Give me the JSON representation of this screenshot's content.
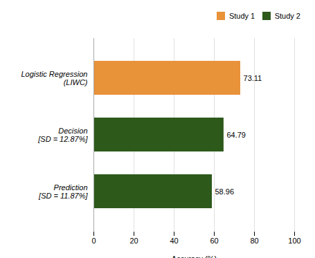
{
  "chart_data": {
    "type": "bar",
    "orientation": "horizontal",
    "categories": [
      "Logistic Regression\n(LIWC)",
      "Decision\n[SD = 12.87%]",
      "Prediction\n[SD = 11.87%]"
    ],
    "series": [
      {
        "name": "Study 1",
        "color": "#E8923A",
        "values": [
          73.11,
          null,
          null
        ]
      },
      {
        "name": "Study 2",
        "color": "#2D5A1B",
        "values": [
          null,
          64.79,
          58.96
        ]
      }
    ],
    "xlabel": "Accuracy (%)",
    "xlim": [
      0,
      100
    ],
    "xticks": [
      0,
      20,
      40,
      60,
      80,
      100
    ],
    "grid": true,
    "data_labels": true,
    "legend": "upper right"
  }
}
